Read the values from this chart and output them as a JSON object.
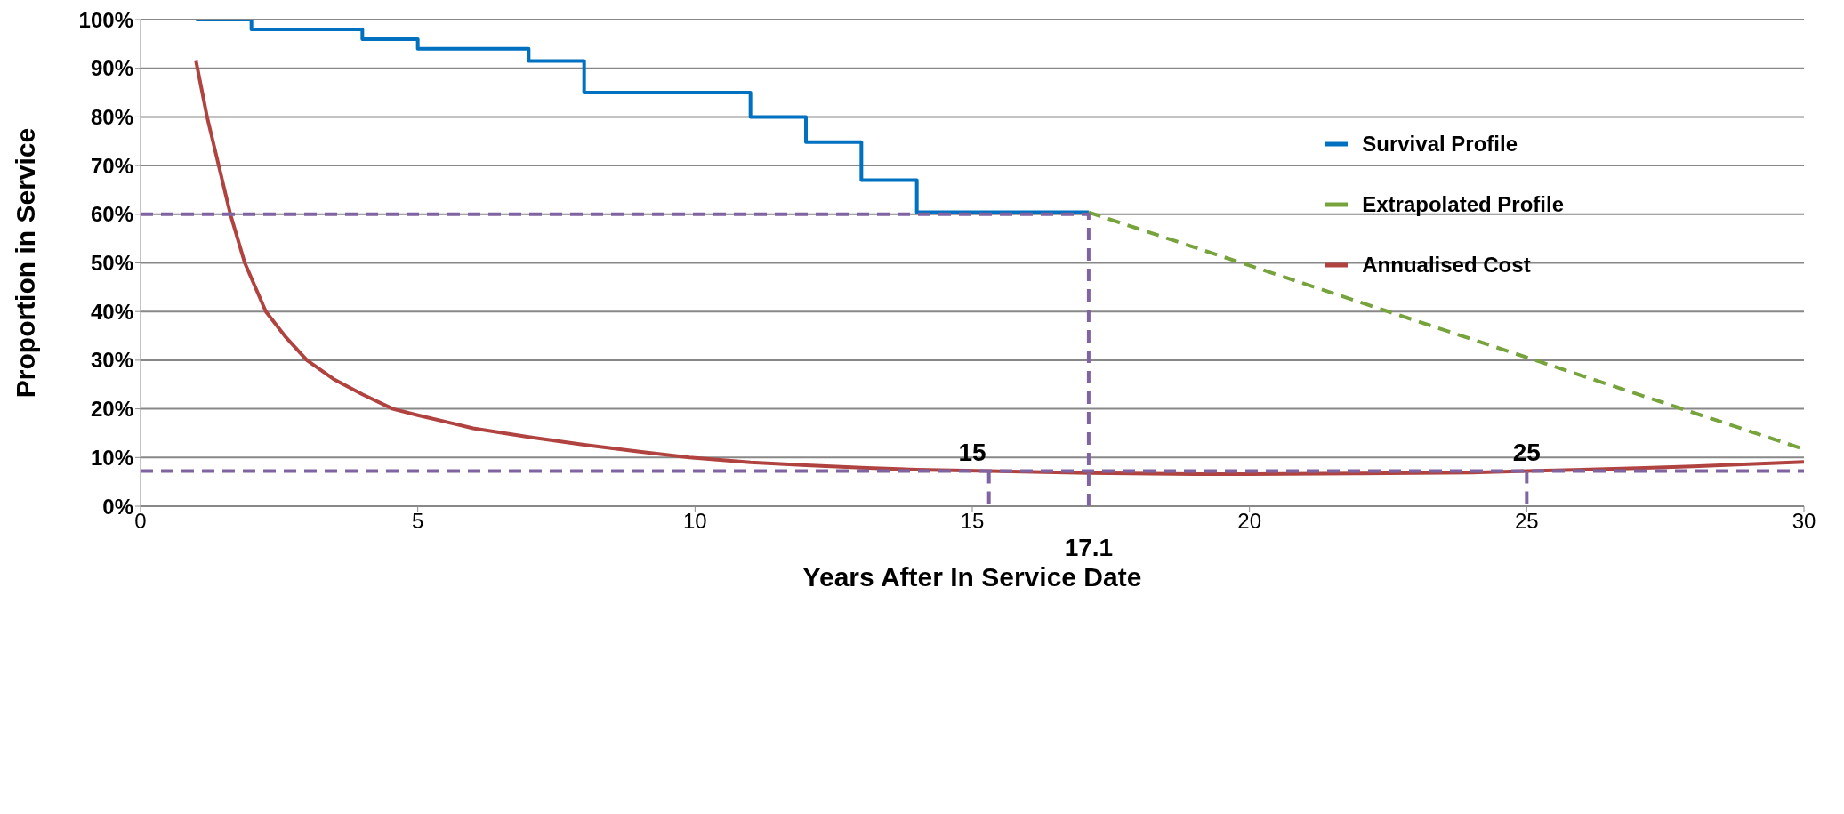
{
  "chart_data": {
    "type": "line",
    "xlabel": "Years After In Service Date",
    "ylabel": "Proportion in Service",
    "xlim": [
      0,
      30
    ],
    "xticks": [
      0,
      5,
      10,
      15,
      20,
      25,
      30
    ],
    "ylim": [
      0,
      100
    ],
    "yticks": [
      {
        "value": 0,
        "label": "0%"
      },
      {
        "value": 10,
        "label": "10%"
      },
      {
        "value": 20,
        "label": "20%"
      },
      {
        "value": 30,
        "label": "30%"
      },
      {
        "value": 40,
        "label": "40%"
      },
      {
        "value": 50,
        "label": "50%"
      },
      {
        "value": 60,
        "label": "60%"
      },
      {
        "value": 70,
        "label": "70%"
      },
      {
        "value": 80,
        "label": "80%"
      },
      {
        "value": 90,
        "label": "90%"
      },
      {
        "value": 100,
        "label": "100%"
      }
    ],
    "grid": "y",
    "legend": "right",
    "marker": "none",
    "series": [
      {
        "name": "Survival Profile",
        "type": "step",
        "color": "#0070c0",
        "x": [
          1,
          2,
          4,
          5,
          7,
          8,
          11,
          12,
          13,
          14,
          17.1
        ],
        "values": [
          100,
          98,
          96,
          94,
          91.5,
          85,
          80,
          74.8,
          67,
          60.4,
          60.4
        ]
      },
      {
        "name": "Extrapolated Profile",
        "line_style": "dashed",
        "color": "#77a33d",
        "x": [
          17.1,
          30
        ],
        "values": [
          60.4,
          11.7
        ]
      },
      {
        "name": "Annualised Cost",
        "color": "#b0433f",
        "x": [
          1,
          1.2,
          1.41,
          1.62,
          1.88,
          2.26,
          2.6,
          3,
          3.5,
          4,
          4.55,
          5,
          6,
          7,
          8,
          9,
          9.9,
          11,
          12,
          13,
          14,
          15.3,
          17.1,
          19,
          20,
          22,
          24,
          25,
          27,
          28,
          30
        ],
        "values": [
          91.5,
          80,
          70,
          60,
          50,
          40,
          35,
          30,
          26,
          23,
          20,
          18.7,
          16,
          14.2,
          12.6,
          11.2,
          10,
          9,
          8.4,
          7.9,
          7.5,
          7.2,
          6.8,
          6.6,
          6.6,
          6.7,
          6.9,
          7.2,
          7.8,
          8.2,
          9.1
        ]
      },
      {
        "line_style": "dashed",
        "color": "#8064a2",
        "x": [
          0,
          17.1,
          17.1
        ],
        "values": [
          60,
          60,
          0
        ]
      },
      {
        "line_style": "dashed",
        "color": "#8064a2",
        "x": [
          0,
          30
        ],
        "values": [
          7.2,
          7.2
        ]
      },
      {
        "line_style": "dashed",
        "color": "#8064a2",
        "x": [
          15.3,
          15.3
        ],
        "values": [
          7.2,
          0
        ]
      },
      {
        "line_style": "dashed",
        "color": "#8064a2",
        "x": [
          25,
          25
        ],
        "values": [
          7.2,
          0
        ]
      }
    ],
    "annotations": [
      {
        "text": "15",
        "x": 15,
        "y": 7.2
      },
      {
        "text": "25",
        "x": 25,
        "y": 7.2
      },
      {
        "text": "17.1",
        "x": 17.1,
        "y": 0
      }
    ]
  }
}
